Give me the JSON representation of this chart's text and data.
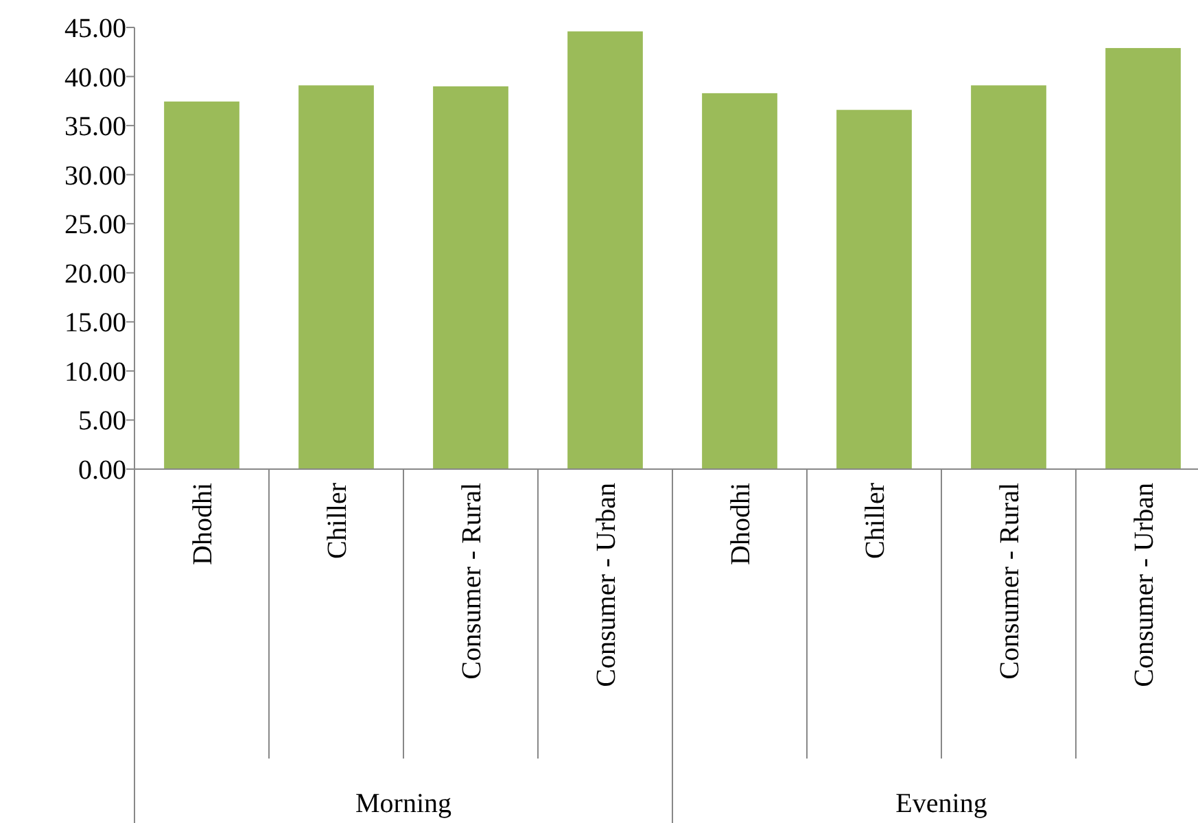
{
  "chart_data": {
    "type": "bar",
    "categories": [
      "Dhodhi",
      "Chiller",
      "Consumer - Rural",
      "Consumer - Urban",
      "Dhodhi",
      "Chiller",
      "Consumer - Rural",
      "Consumer - Urban"
    ],
    "values": [
      37.45,
      39.1,
      39.0,
      44.6,
      38.3,
      36.6,
      39.1,
      42.9
    ],
    "color": "#9bbb59",
    "ylim": [
      0,
      45
    ],
    "yticks": [
      {
        "value": 0,
        "label": "0.00"
      },
      {
        "value": 5,
        "label": "5.00"
      },
      {
        "value": 10,
        "label": "10.00"
      },
      {
        "value": 15,
        "label": "15.00"
      },
      {
        "value": 20,
        "label": "20.00"
      },
      {
        "value": 25,
        "label": "25.00"
      },
      {
        "value": 30,
        "label": "30.00"
      },
      {
        "value": 35,
        "label": "35.00"
      },
      {
        "value": 40,
        "label": "40.00"
      },
      {
        "value": 45,
        "label": "45.00"
      }
    ],
    "annotations": [
      "Morning",
      "Evening"
    ]
  }
}
